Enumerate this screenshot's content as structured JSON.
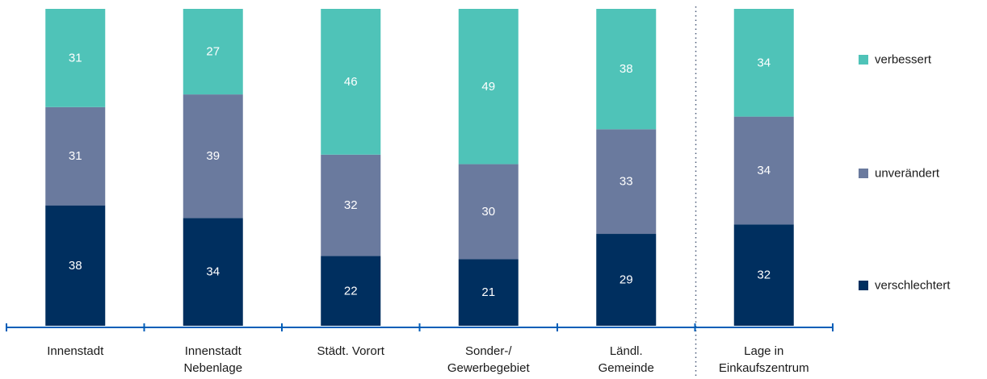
{
  "chart_data": {
    "type": "bar",
    "stacked": true,
    "normalized_percent": true,
    "categories": [
      [
        "Innenstadt"
      ],
      [
        "Innenstadt",
        "Nebenlage"
      ],
      [
        "Städt. Vorort"
      ],
      [
        "Sonder-/",
        "Gewerbegebiet"
      ],
      [
        "Ländl.",
        "Gemeinde"
      ],
      [
        "Lage in",
        "Einkaufszentrum"
      ]
    ],
    "series": [
      {
        "name": "verschlechtert",
        "color": "#002f5f",
        "values": [
          38,
          34,
          22,
          21,
          29,
          32
        ]
      },
      {
        "name": "unverändert",
        "color": "#6a7a9e",
        "values": [
          31,
          39,
          32,
          30,
          33,
          34
        ]
      },
      {
        "name": "verbessert",
        "color": "#4fc3b8",
        "values": [
          31,
          27,
          46,
          49,
          38,
          34
        ]
      }
    ],
    "legend_order": [
      "verbessert",
      "unverändert",
      "verschlechtert"
    ],
    "legend_position": "right",
    "separator_before_last_category": true,
    "axis_color": "#005eb8",
    "grid": false
  }
}
